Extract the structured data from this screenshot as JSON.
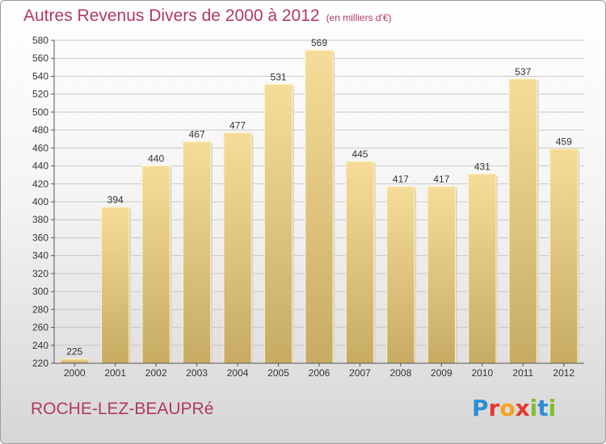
{
  "header": {
    "title": "Autres Revenus Divers de 2000 à 2012",
    "subtitle": "(en milliers d'€)"
  },
  "footer": {
    "commune": "ROCHE-LEZ-BEAUPRé",
    "logo": "Proxiti"
  },
  "colors": {
    "title": "#b13a5e",
    "bar_top": "#f5dd99",
    "bar_bottom": "#c7ab63",
    "grid": "#c8c8c8"
  },
  "chart_data": {
    "type": "bar",
    "title": "Autres Revenus Divers de 2000 à 2012",
    "categories": [
      "2000",
      "2001",
      "2002",
      "2003",
      "2004",
      "2005",
      "2006",
      "2007",
      "2008",
      "2009",
      "2010",
      "2011",
      "2012"
    ],
    "values": [
      225,
      394,
      440,
      467,
      477,
      531,
      569,
      445,
      417,
      417,
      431,
      537,
      459
    ],
    "ylim": [
      220,
      580
    ],
    "yticks": [
      220,
      240,
      260,
      280,
      300,
      320,
      340,
      360,
      380,
      400,
      420,
      440,
      460,
      480,
      500,
      520,
      540,
      560,
      580
    ],
    "grid": true,
    "xlabel": "",
    "ylabel": ""
  }
}
